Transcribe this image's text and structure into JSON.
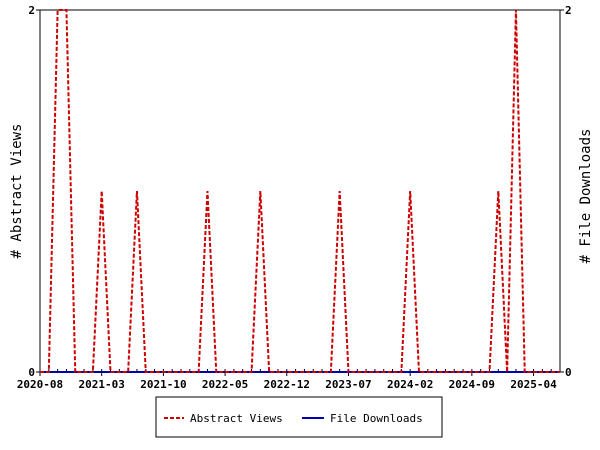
{
  "chart_data": {
    "type": "line",
    "title": "",
    "y_left_label": "# Abstract Views",
    "y_right_label": "# File Downloads",
    "y_left_range": [
      0,
      2
    ],
    "y_right_range": [
      0,
      2
    ],
    "y_left_ticks": [
      "0",
      "2"
    ],
    "y_right_ticks": [
      "0",
      "2"
    ],
    "x_range": [
      "2020-08",
      "2025-07"
    ],
    "x_ticks": [
      "2020-08",
      "2021-03",
      "2021-10",
      "2022-05",
      "2022-12",
      "2023-07",
      "2024-02",
      "2024-09",
      "2025-04"
    ],
    "legend_position": "bottom",
    "grid": false,
    "series": [
      {
        "name": "Abstract Views",
        "color": "#cc0000",
        "line_style": "dashed",
        "axis": "left",
        "points": [
          [
            "2020-08",
            0
          ],
          [
            "2020-09",
            0
          ],
          [
            "2020-10",
            2
          ],
          [
            "2020-11",
            2
          ],
          [
            "2020-12",
            0
          ],
          [
            "2021-01",
            0
          ],
          [
            "2021-02",
            0
          ],
          [
            "2021-03",
            1
          ],
          [
            "2021-04",
            0
          ],
          [
            "2021-05",
            0
          ],
          [
            "2021-06",
            0
          ],
          [
            "2021-07",
            1
          ],
          [
            "2021-08",
            0
          ],
          [
            "2021-09",
            0
          ],
          [
            "2021-10",
            0
          ],
          [
            "2021-11",
            0
          ],
          [
            "2021-12",
            0
          ],
          [
            "2022-01",
            0
          ],
          [
            "2022-02",
            0
          ],
          [
            "2022-03",
            1
          ],
          [
            "2022-04",
            0
          ],
          [
            "2022-05",
            0
          ],
          [
            "2022-06",
            0
          ],
          [
            "2022-07",
            0
          ],
          [
            "2022-08",
            0
          ],
          [
            "2022-09",
            1
          ],
          [
            "2022-10",
            0
          ],
          [
            "2022-11",
            0
          ],
          [
            "2022-12",
            0
          ],
          [
            "2023-01",
            0
          ],
          [
            "2023-02",
            0
          ],
          [
            "2023-03",
            0
          ],
          [
            "2023-04",
            0
          ],
          [
            "2023-05",
            0
          ],
          [
            "2023-06",
            1
          ],
          [
            "2023-07",
            0
          ],
          [
            "2023-08",
            0
          ],
          [
            "2023-09",
            0
          ],
          [
            "2023-10",
            0
          ],
          [
            "2023-11",
            0
          ],
          [
            "2023-12",
            0
          ],
          [
            "2024-01",
            0
          ],
          [
            "2024-02",
            1
          ],
          [
            "2024-03",
            0
          ],
          [
            "2024-04",
            0
          ],
          [
            "2024-05",
            0
          ],
          [
            "2024-06",
            0
          ],
          [
            "2024-07",
            0
          ],
          [
            "2024-08",
            0
          ],
          [
            "2024-09",
            0
          ],
          [
            "2024-10",
            0
          ],
          [
            "2024-11",
            0
          ],
          [
            "2024-12",
            1
          ],
          [
            "2025-01",
            0
          ],
          [
            "2025-02",
            2
          ],
          [
            "2025-03",
            0
          ],
          [
            "2025-04",
            0
          ],
          [
            "2025-05",
            0
          ],
          [
            "2025-06",
            0
          ],
          [
            "2025-07",
            0
          ]
        ]
      },
      {
        "name": "File Downloads",
        "color": "#0000aa",
        "line_style": "solid",
        "axis": "right",
        "points": [
          [
            "2020-08",
            0
          ],
          [
            "2021-03",
            0
          ],
          [
            "2021-10",
            0
          ],
          [
            "2022-05",
            0
          ],
          [
            "2022-12",
            0
          ],
          [
            "2023-07",
            0
          ],
          [
            "2024-02",
            0
          ],
          [
            "2024-09",
            0
          ],
          [
            "2025-04",
            0
          ],
          [
            "2025-07",
            0
          ]
        ]
      }
    ]
  }
}
